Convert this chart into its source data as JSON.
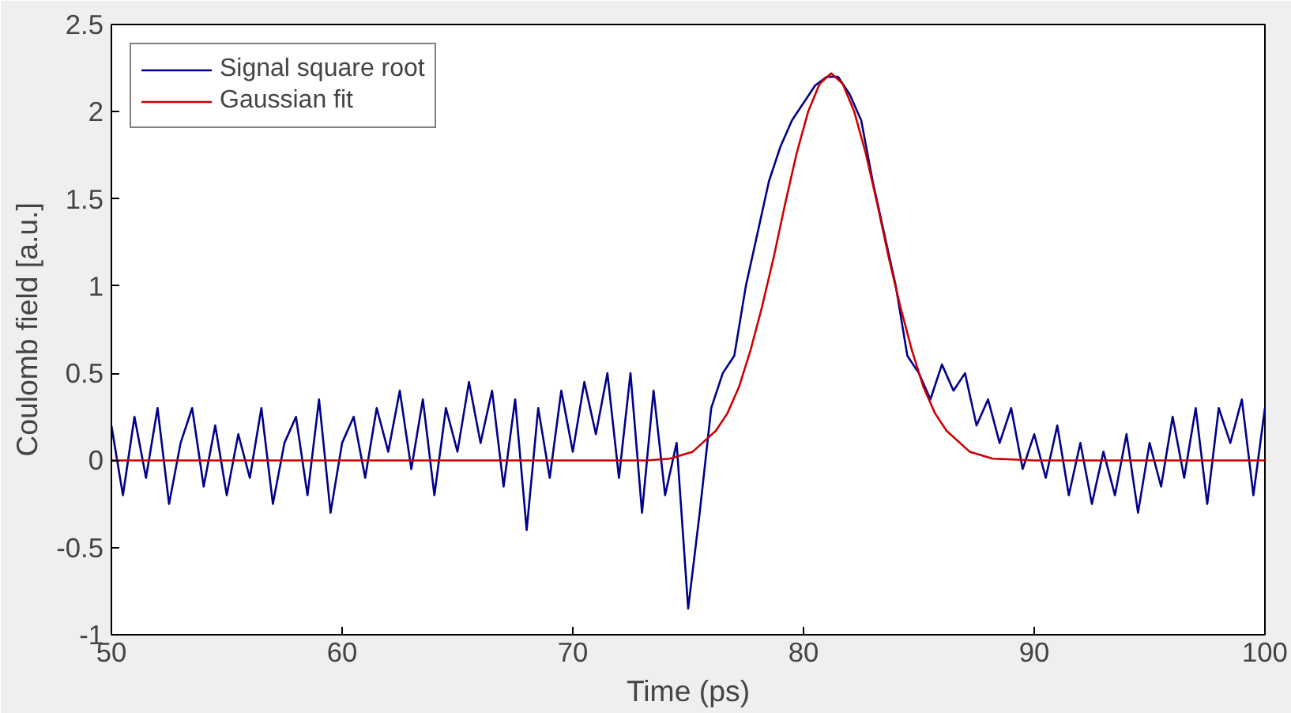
{
  "chart_data": {
    "type": "line",
    "xlabel": "Time (ps)",
    "ylabel": "Coulomb field [a.u.]",
    "xlim": [
      50,
      100
    ],
    "ylim": [
      -1,
      2.5
    ],
    "xticks": [
      50,
      60,
      70,
      80,
      90,
      100
    ],
    "yticks": [
      -1,
      -0.5,
      0,
      0.5,
      1,
      1.5,
      2,
      2.5
    ],
    "grid": false,
    "legend": "top left",
    "marker": "none",
    "line_style": "solid",
    "series": [
      {
        "name": "Signal square root",
        "color": "#00008b",
        "x": [
          50,
          50.5,
          51,
          51.5,
          52,
          52.5,
          53,
          53.5,
          54,
          54.5,
          55,
          55.5,
          56,
          56.5,
          57,
          57.5,
          58,
          58.5,
          59,
          59.5,
          60,
          60.5,
          61,
          61.5,
          62,
          62.5,
          63,
          63.5,
          64,
          64.5,
          65,
          65.5,
          66,
          66.5,
          67,
          67.5,
          68,
          68.5,
          69,
          69.5,
          70,
          70.5,
          71,
          71.5,
          72,
          72.5,
          73,
          73.5,
          74,
          74.5,
          75,
          75.5,
          76,
          76.5,
          77,
          77.5,
          78,
          78.5,
          79,
          79.5,
          80,
          80.5,
          81,
          81.5,
          82,
          82.5,
          83,
          83.5,
          84,
          84.5,
          85,
          85.5,
          86,
          86.5,
          87,
          87.5,
          88,
          88.5,
          89,
          89.5,
          90,
          90.5,
          91,
          91.5,
          92,
          92.5,
          93,
          93.5,
          94,
          94.5,
          95,
          95.5,
          96,
          96.5,
          97,
          97.5,
          98,
          98.5,
          99,
          99.5,
          100
        ],
        "values": [
          0.2,
          -0.2,
          0.25,
          -0.1,
          0.3,
          -0.25,
          0.1,
          0.3,
          -0.15,
          0.2,
          -0.2,
          0.15,
          -0.1,
          0.3,
          -0.25,
          0.1,
          0.25,
          -0.2,
          0.35,
          -0.3,
          0.1,
          0.25,
          -0.1,
          0.3,
          0.05,
          0.4,
          -0.05,
          0.35,
          -0.2,
          0.3,
          0.05,
          0.45,
          0.1,
          0.4,
          -0.15,
          0.35,
          -0.4,
          0.3,
          -0.1,
          0.4,
          0.05,
          0.45,
          0.15,
          0.5,
          -0.1,
          0.5,
          -0.3,
          0.4,
          -0.2,
          0.1,
          -0.85,
          -0.3,
          0.3,
          0.5,
          0.6,
          1.0,
          1.3,
          1.6,
          1.8,
          1.95,
          2.05,
          2.15,
          2.2,
          2.2,
          2.1,
          1.95,
          1.6,
          1.3,
          1.0,
          0.6,
          0.5,
          0.35,
          0.55,
          0.4,
          0.5,
          0.2,
          0.35,
          0.1,
          0.3,
          -0.05,
          0.15,
          -0.1,
          0.2,
          -0.2,
          0.1,
          -0.25,
          0.05,
          -0.2,
          0.15,
          -0.3,
          0.1,
          -0.15,
          0.25,
          -0.1,
          0.3,
          -0.25,
          0.3,
          0.1,
          0.35,
          -0.2,
          0.3
        ]
      },
      {
        "name": "Gaussian fit",
        "color": "#cc0000",
        "x": [
          50,
          72,
          73.2,
          74.2,
          75.2,
          76.2,
          76.7,
          77.2,
          77.7,
          78.2,
          78.7,
          79.2,
          79.7,
          80.2,
          80.7,
          81.2,
          81.7,
          82.2,
          82.7,
          83.2,
          83.7,
          84.2,
          84.7,
          85.2,
          85.7,
          86.2,
          87.2,
          88.2,
          90,
          100
        ],
        "values": [
          0,
          0,
          0,
          0.01,
          0.05,
          0.17,
          0.27,
          0.42,
          0.63,
          0.88,
          1.16,
          1.47,
          1.76,
          2.0,
          2.16,
          2.22,
          2.16,
          2.0,
          1.76,
          1.47,
          1.16,
          0.88,
          0.63,
          0.42,
          0.27,
          0.17,
          0.05,
          0.01,
          0,
          0
        ]
      }
    ]
  }
}
